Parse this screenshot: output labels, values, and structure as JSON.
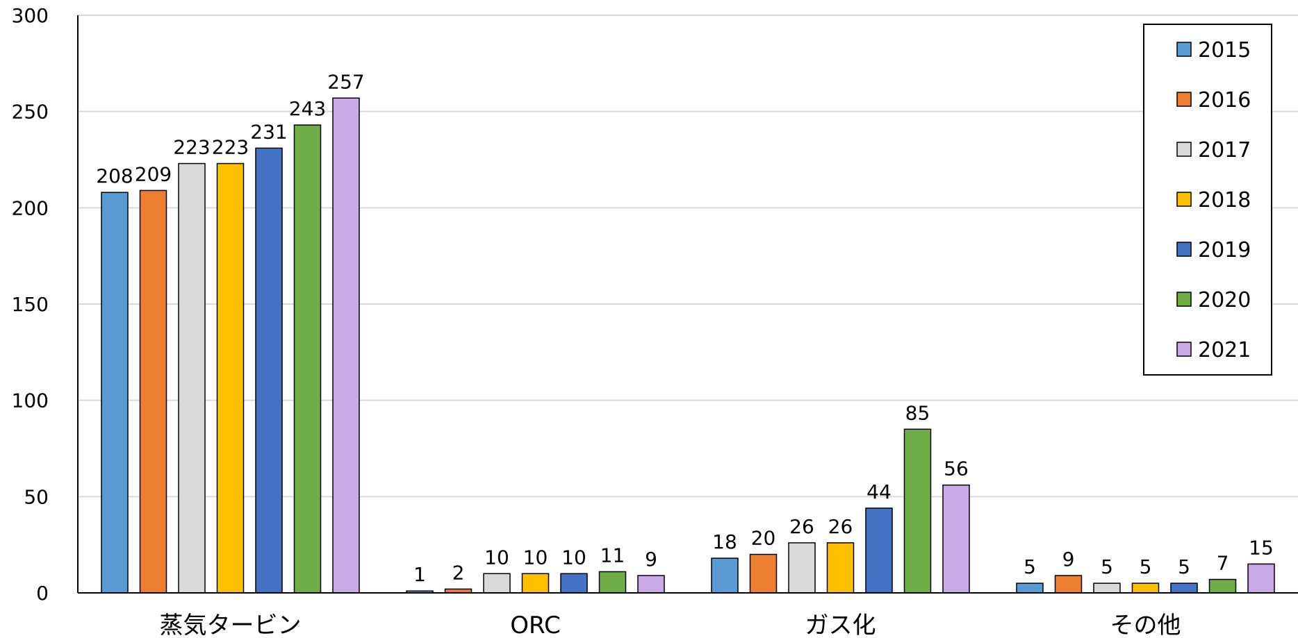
{
  "chart_data": {
    "type": "bar",
    "categories": [
      "蒸気タービン",
      "ORC",
      "ガス化",
      "その他"
    ],
    "series": [
      {
        "name": "2015",
        "color": "#5B9BD5",
        "values": [
          208,
          1,
          18,
          5
        ]
      },
      {
        "name": "2016",
        "color": "#ED7D31",
        "values": [
          209,
          2,
          20,
          9
        ]
      },
      {
        "name": "2017",
        "color": "#D9D9D9",
        "values": [
          223,
          10,
          26,
          5
        ]
      },
      {
        "name": "2018",
        "color": "#FFC000",
        "values": [
          223,
          10,
          26,
          5
        ]
      },
      {
        "name": "2019",
        "color": "#4472C4",
        "values": [
          231,
          10,
          44,
          5
        ]
      },
      {
        "name": "2020",
        "color": "#70AD47",
        "values": [
          243,
          11,
          85,
          7
        ]
      },
      {
        "name": "2021",
        "color": "#C9A9E6",
        "values": [
          257,
          9,
          56,
          15
        ]
      }
    ],
    "ylim": [
      0,
      300
    ],
    "yticks": [
      0,
      50,
      100,
      150,
      200,
      250,
      300
    ],
    "grid": true,
    "legend_position": "top-right"
  }
}
